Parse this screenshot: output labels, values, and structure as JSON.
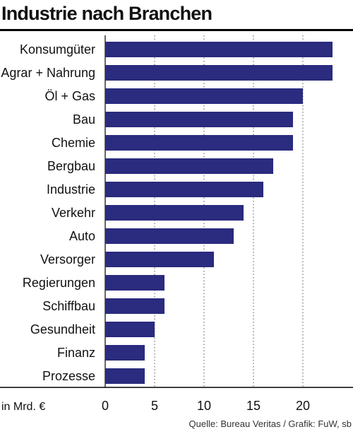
{
  "chart_data": {
    "type": "bar",
    "orientation": "horizontal",
    "title": "Industrie nach Branchen",
    "categories": [
      "Konsumgüter",
      "Agrar + Nahrung",
      "Öl + Gas",
      "Bau",
      "Chemie",
      "Bergbau",
      "Industrie",
      "Verkehr",
      "Auto",
      "Versorger",
      "Regierungen",
      "Schiffbau",
      "Gesundheit",
      "Finanz",
      "Prozesse"
    ],
    "values": [
      23,
      23,
      20,
      19,
      19,
      17,
      16,
      14,
      13,
      11,
      6,
      6,
      5,
      4,
      4
    ],
    "x_unit_label": "in Mrd. €",
    "x_ticks": [
      0,
      5,
      10,
      15,
      20
    ],
    "xlim": [
      0,
      25
    ],
    "grid": "vertical dotted",
    "bar_color": "#2b2b7f",
    "source": "Quelle: Bureau Veritas / Grafik: FuW, sb"
  }
}
